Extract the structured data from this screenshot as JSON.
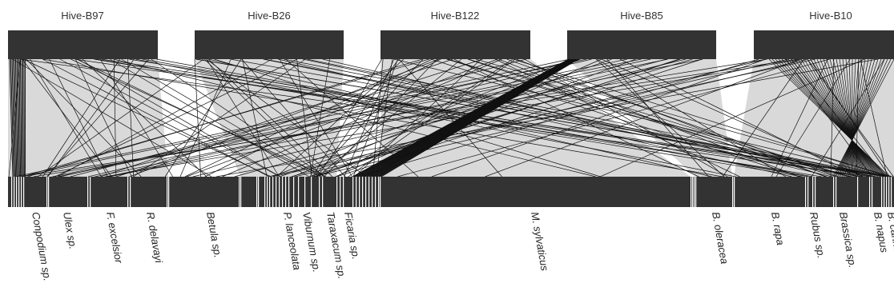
{
  "colors": {
    "block": "#333333",
    "band": "#d9d9d9",
    "line": "#111111",
    "background": "#ffffff"
  },
  "hives": [
    "Hive-B97",
    "Hive-B26",
    "Hive-B122",
    "Hive-B85",
    "Hive-B10"
  ],
  "plants": [
    "Conpodium sp.",
    "Ulex sp.",
    "F. excelsior",
    "R. delavayi",
    "Betula sp.",
    "P. lanceolata",
    "Viburnum sp.",
    "Taraxacum sp.",
    "Ficaria sp.",
    "M. sylvaticus",
    "B. oleracea",
    "B. rapa",
    "Rubus sp.",
    "Brassica sp.",
    "B. napus",
    "B. carinata"
  ]
}
